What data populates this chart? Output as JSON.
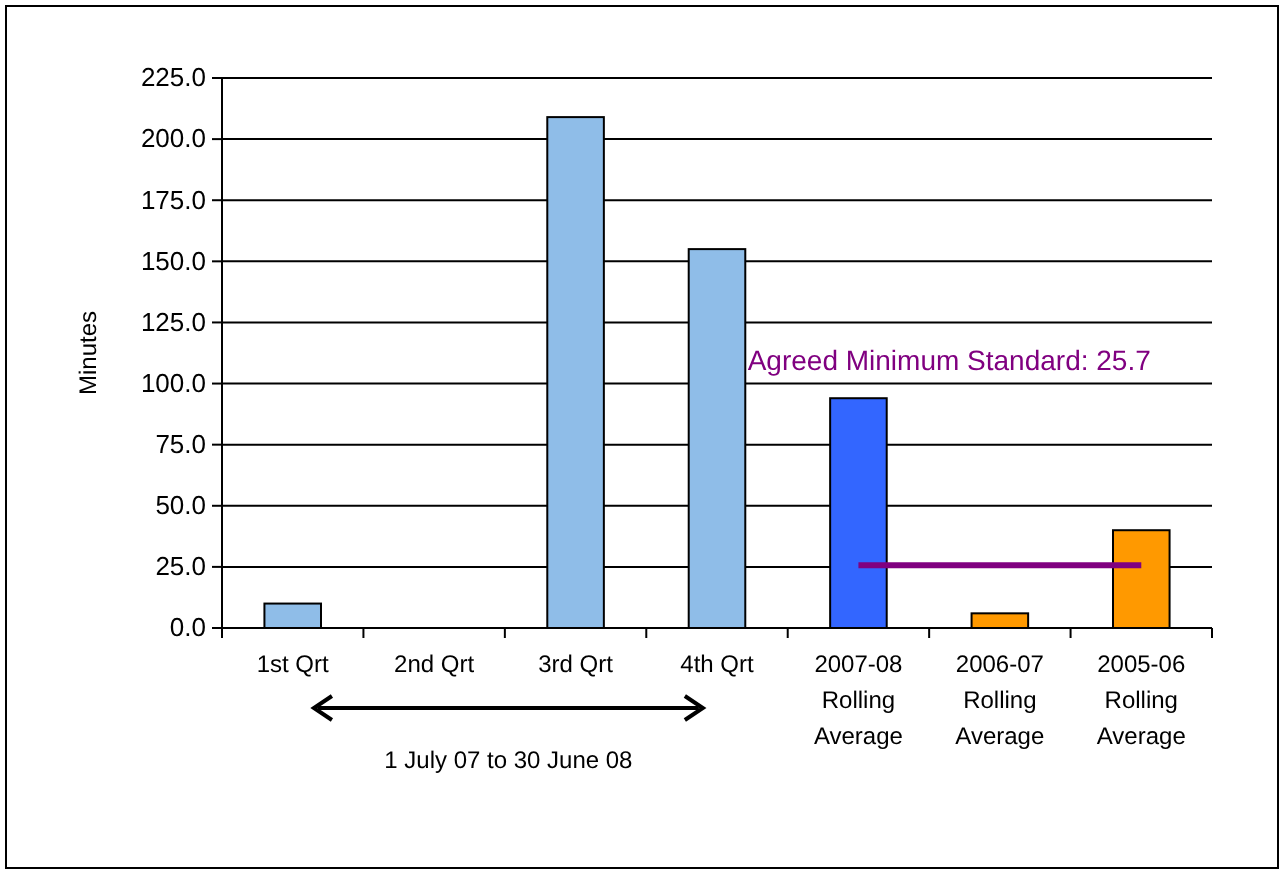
{
  "chart_data": {
    "type": "bar",
    "ylabel": "Minutes",
    "categories": [
      "1st Qrt",
      "2nd Qrt",
      "3rd Qrt",
      "4th Qrt",
      "2007-08\nRolling\nAverage",
      "2006-07\nRolling\nAverage",
      "2005-06\nRolling\nAverage"
    ],
    "series": [
      {
        "colors": [
          "#8fbde8",
          "#8fbde8",
          "#8fbde8",
          "#8fbde8",
          "#3366ff",
          "#ff9900",
          "#ff9900"
        ],
        "values": [
          10,
          0,
          209,
          155,
          94,
          6,
          40
        ]
      },
      {
        "type": "line",
        "name": "Agreed Minimum Standard: 25.7",
        "color": "#800080",
        "values": [
          null,
          null,
          null,
          null,
          25.7,
          25.7,
          25.7
        ]
      }
    ],
    "ylim": [
      0,
      225
    ],
    "yticks": [
      {
        "value": 0,
        "label": "0.0"
      },
      {
        "value": 25,
        "label": "25.0"
      },
      {
        "value": 50,
        "label": "50.0"
      },
      {
        "value": 75,
        "label": "75.0"
      },
      {
        "value": 100,
        "label": "100.0"
      },
      {
        "value": 125,
        "label": "125.0"
      },
      {
        "value": 150,
        "label": "150.0"
      },
      {
        "value": 175,
        "label": "175.0"
      },
      {
        "value": 200,
        "label": "200.0"
      },
      {
        "value": 225,
        "label": "225.0"
      }
    ],
    "grid": "y",
    "marker": "none",
    "line_style": "solid",
    "annotations": [
      "1 July 07 to 30 June 08"
    ]
  }
}
